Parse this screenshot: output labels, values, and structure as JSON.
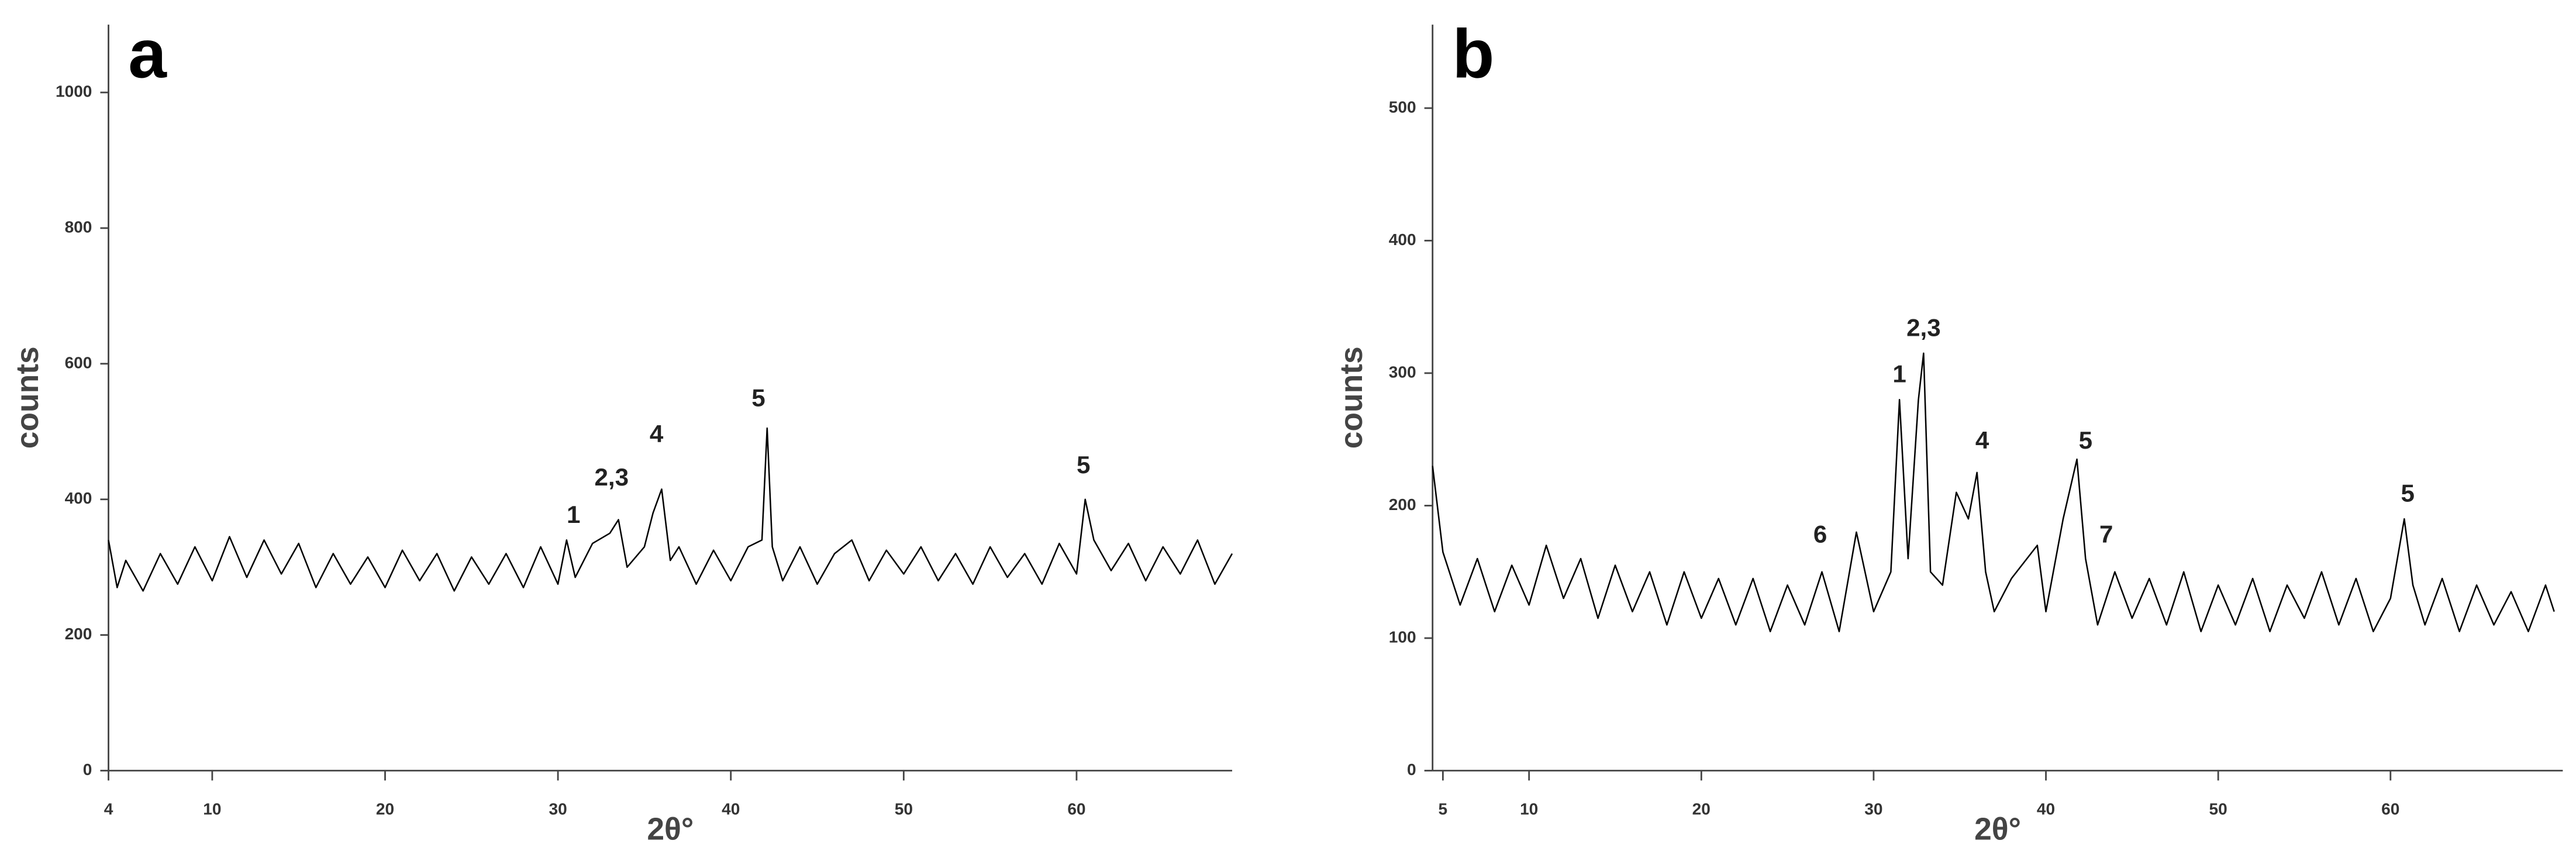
{
  "chart_data": [
    {
      "type": "line",
      "panel_label": "a",
      "x_label": "2θ°",
      "y_label": "counts",
      "color": "#000000",
      "xlim": [
        4,
        69
      ],
      "ylim": [
        0,
        1100
      ],
      "xticks": [
        4,
        10,
        20,
        30,
        40,
        50,
        60
      ],
      "yticks": [
        0,
        200,
        400,
        600,
        800,
        1000
      ],
      "x": [
        4,
        4.5,
        5,
        6,
        7,
        8,
        9,
        10,
        11,
        12,
        13,
        14,
        15,
        16,
        17,
        18,
        19,
        20,
        21,
        22,
        23,
        24,
        25,
        26,
        27,
        28,
        29,
        30,
        30.5,
        31,
        32,
        33,
        33.5,
        34,
        35,
        35.5,
        36,
        36.5,
        37,
        38,
        39,
        40,
        41,
        41.8,
        42.1,
        42.4,
        43,
        44,
        45,
        46,
        47,
        48,
        49,
        50,
        51,
        52,
        53,
        54,
        55,
        56,
        57,
        58,
        59,
        60,
        60.5,
        61,
        62,
        63,
        64,
        65,
        66,
        67,
        68,
        69
      ],
      "values": [
        340,
        270,
        310,
        265,
        320,
        275,
        330,
        280,
        345,
        285,
        340,
        290,
        335,
        270,
        320,
        275,
        315,
        270,
        325,
        280,
        320,
        265,
        315,
        275,
        320,
        270,
        330,
        275,
        340,
        285,
        335,
        350,
        370,
        300,
        330,
        380,
        415,
        310,
        330,
        275,
        325,
        280,
        330,
        340,
        505,
        330,
        280,
        330,
        275,
        320,
        340,
        280,
        325,
        290,
        330,
        280,
        320,
        275,
        330,
        285,
        320,
        275,
        335,
        290,
        400,
        340,
        295,
        335,
        280,
        330,
        290,
        340,
        275,
        320
      ],
      "annotations": [
        {
          "text": "1",
          "x": 30.9,
          "y": 375
        },
        {
          "text": "2,3",
          "x": 33.1,
          "y": 430
        },
        {
          "text": "4",
          "x": 35.7,
          "y": 494
        },
        {
          "text": "5",
          "x": 41.6,
          "y": 547
        },
        {
          "text": "5",
          "x": 60.4,
          "y": 448
        }
      ]
    },
    {
      "type": "line",
      "panel_label": "b",
      "x_label": "2θ°",
      "y_label": "counts",
      "color": "#000000",
      "xlim": [
        4.4,
        70
      ],
      "ylim": [
        0,
        563
      ],
      "xticks": [
        5,
        10,
        20,
        30,
        40,
        50,
        60
      ],
      "yticks": [
        0,
        100,
        200,
        300,
        400,
        500
      ],
      "x": [
        4.4,
        5,
        6,
        7,
        8,
        9,
        10,
        11,
        12,
        13,
        14,
        15,
        16,
        17,
        18,
        19,
        20,
        21,
        22,
        23,
        24,
        25,
        26,
        27,
        28,
        29,
        30,
        31,
        31.5,
        32,
        32.6,
        32.9,
        33.3,
        34,
        34.8,
        35.5,
        36,
        36.5,
        37,
        38,
        39.5,
        40,
        41,
        41.8,
        42.3,
        43,
        44,
        45,
        46,
        47,
        48,
        49,
        50,
        51,
        52,
        53,
        54,
        55,
        56,
        57,
        58,
        59,
        60,
        60.8,
        61.3,
        62,
        63,
        64,
        65,
        66,
        67,
        68,
        69,
        69.5
      ],
      "values": [
        230,
        165,
        125,
        160,
        120,
        155,
        125,
        170,
        130,
        160,
        115,
        155,
        120,
        150,
        110,
        150,
        115,
        145,
        110,
        145,
        105,
        140,
        110,
        150,
        105,
        180,
        120,
        150,
        280,
        160,
        280,
        315,
        150,
        140,
        210,
        190,
        225,
        150,
        120,
        145,
        170,
        120,
        190,
        235,
        160,
        110,
        150,
        115,
        145,
        110,
        150,
        105,
        140,
        110,
        145,
        105,
        140,
        115,
        150,
        110,
        145,
        105,
        130,
        190,
        140,
        110,
        145,
        105,
        140,
        110,
        135,
        105,
        140,
        120
      ],
      "annotations": [
        {
          "text": "6",
          "x": 26.9,
          "y": 177
        },
        {
          "text": "1",
          "x": 31.5,
          "y": 298
        },
        {
          "text": "2,3",
          "x": 32.9,
          "y": 333
        },
        {
          "text": "4",
          "x": 36.3,
          "y": 248
        },
        {
          "text": "5",
          "x": 42.3,
          "y": 248
        },
        {
          "text": "7",
          "x": 43.5,
          "y": 177
        },
        {
          "text": "5",
          "x": 61,
          "y": 208
        }
      ]
    }
  ]
}
